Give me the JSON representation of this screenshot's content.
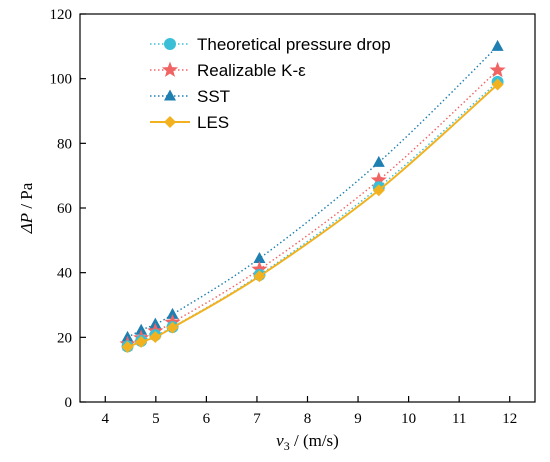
{
  "chart_data": {
    "type": "line",
    "xlabel": {
      "var": "v",
      "sub": "3",
      "unit": " / (m/s)"
    },
    "ylabel": {
      "var": "ΔP",
      "unit": " / Pa"
    },
    "xlim": [
      3.5,
      12.5
    ],
    "ylim": [
      0,
      120
    ],
    "xticks": [
      4,
      5,
      6,
      7,
      8,
      9,
      10,
      11,
      12
    ],
    "yticks": [
      0,
      20,
      40,
      60,
      80,
      100,
      120
    ],
    "grid": false,
    "legend_position": "top-left",
    "x": [
      4.44,
      4.71,
      4.99,
      5.33,
      7.05,
      9.41,
      11.76
    ],
    "series": [
      {
        "name": "Theoretical pressure drop",
        "color": "#3bbfd6",
        "marker": "circle",
        "line": "dotted",
        "values": [
          17.2,
          18.9,
          20.7,
          23.2,
          39.3,
          66.4,
          99.0
        ]
      },
      {
        "name": "Realizable K-ε",
        "color": "#f06464",
        "marker": "star",
        "line": "dotted",
        "values": [
          17.9,
          19.8,
          21.9,
          24.6,
          41.0,
          68.6,
          102.6
        ]
      },
      {
        "name": "SST",
        "color": "#1f7fb0",
        "marker": "triangle",
        "line": "dotted",
        "values": [
          20.0,
          22.2,
          24.1,
          27.1,
          44.4,
          74.1,
          110.0
        ]
      },
      {
        "name": "LES",
        "color": "#f2b21f",
        "marker": "diamond",
        "line": "solid",
        "values": [
          17.0,
          18.6,
          20.1,
          23.0,
          38.9,
          65.5,
          98.2
        ]
      }
    ]
  }
}
